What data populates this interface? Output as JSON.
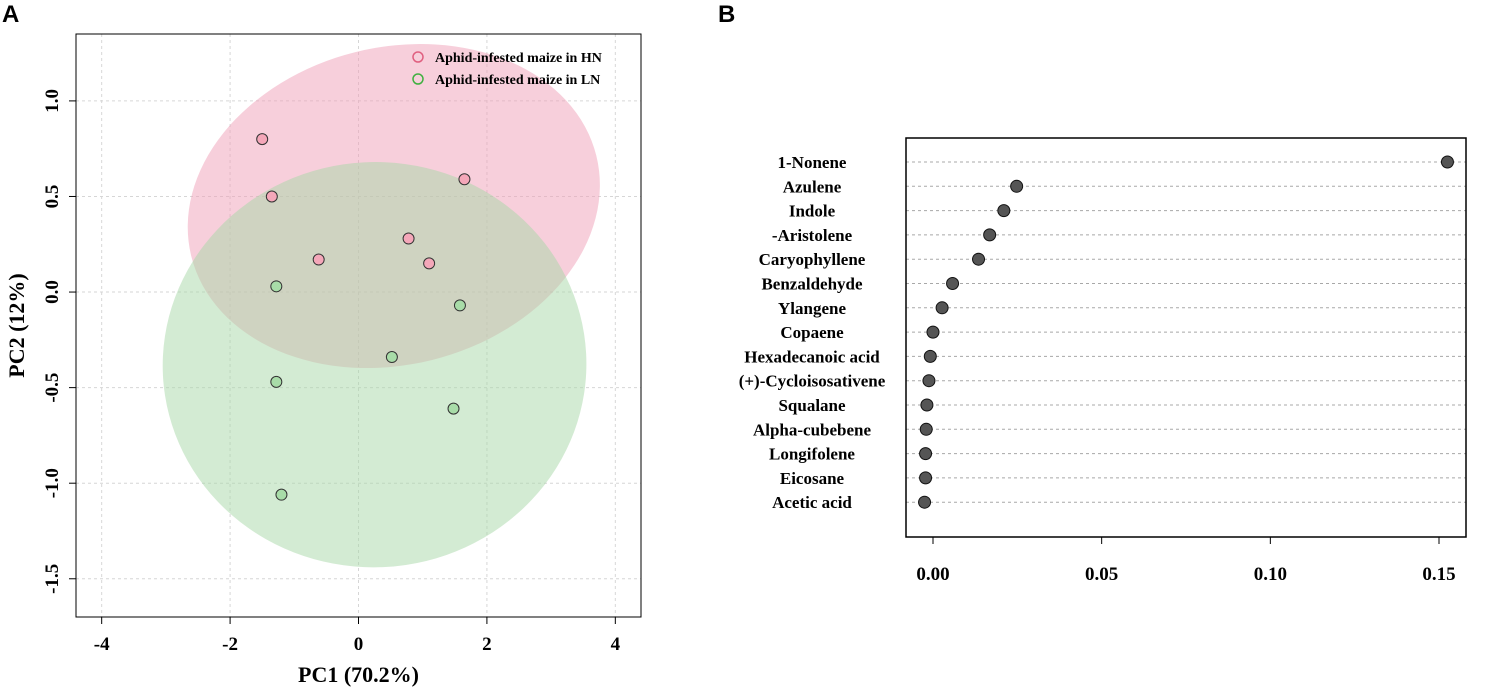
{
  "panel_a_label": "A",
  "panel_b_label": "B",
  "chart_data": [
    {
      "type": "scatter",
      "panel": "A",
      "xlabel": "PC1 (70.2%)",
      "ylabel": "PC2 (12%)",
      "xlim": [
        -4.4,
        4.4
      ],
      "ylim": [
        -1.7,
        1.35
      ],
      "xticks": [
        -4,
        -2,
        0,
        2,
        4
      ],
      "xtick_labels": [
        "-4",
        "-2",
        "0",
        "2",
        "4"
      ],
      "yticks": [
        1.0,
        0.5,
        0.0,
        -0.5,
        -1.0,
        -1.5
      ],
      "ytick_labels": [
        "1.0",
        "0.5",
        "0.0",
        "-0.5",
        "-1.0",
        "-1.5"
      ],
      "grid": true,
      "legend_position": "top-right",
      "series": [
        {
          "name": "Aphid-infested maize in HN",
          "color": "#e06080",
          "fill": "#f4a7b9",
          "ellipse_fill": "#f0a0b8",
          "points": [
            {
              "x": -1.5,
              "y": 0.8
            },
            {
              "x": -1.35,
              "y": 0.5
            },
            {
              "x": 1.65,
              "y": 0.59
            },
            {
              "x": 0.78,
              "y": 0.28
            },
            {
              "x": -0.62,
              "y": 0.17
            },
            {
              "x": 1.1,
              "y": 0.15
            }
          ],
          "ellipse": {
            "cx": 0.55,
            "cy": 0.45,
            "rx": 3.25,
            "ry": 0.83,
            "angle_deg": -14
          }
        },
        {
          "name": "Aphid-infested maize in LN",
          "color": "#40b040",
          "fill": "#a8dca8",
          "ellipse_fill": "#a8d8a8",
          "points": [
            {
              "x": -1.28,
              "y": 0.03
            },
            {
              "x": 1.58,
              "y": -0.07
            },
            {
              "x": 0.52,
              "y": -0.34
            },
            {
              "x": -1.28,
              "y": -0.47
            },
            {
              "x": 1.48,
              "y": -0.61
            },
            {
              "x": -1.2,
              "y": -1.06
            }
          ],
          "ellipse": {
            "cx": 0.25,
            "cy": -0.38,
            "rx": 3.3,
            "ry": 1.06,
            "angle_deg": -3
          }
        }
      ]
    },
    {
      "type": "scatter",
      "panel": "B",
      "xlim": [
        -0.008,
        0.158
      ],
      "xticks": [
        0.0,
        0.05,
        0.1,
        0.15
      ],
      "xtick_labels": [
        "0.00",
        "0.05",
        "0.10",
        "0.15"
      ],
      "categories": [
        "1-Nonene",
        "Azulene",
        "Indole",
        "-Aristolene",
        "Caryophyllene",
        "Benzaldehyde",
        "Ylangene",
        "Copaene",
        "Hexadecanoic acid",
        "(+)-Cycloisosativene",
        "Squalane",
        "Alpha-cubebene",
        "Longifolene",
        "Eicosane",
        "Acetic acid"
      ],
      "values": [
        0.1525,
        0.0248,
        0.021,
        0.0168,
        0.0135,
        0.0058,
        0.0027,
        0.0,
        -0.0008,
        -0.0012,
        -0.0018,
        -0.002,
        -0.0022,
        -0.0022,
        -0.0025
      ],
      "point_color": "#555555",
      "grid": "horizontal-dashed"
    }
  ]
}
